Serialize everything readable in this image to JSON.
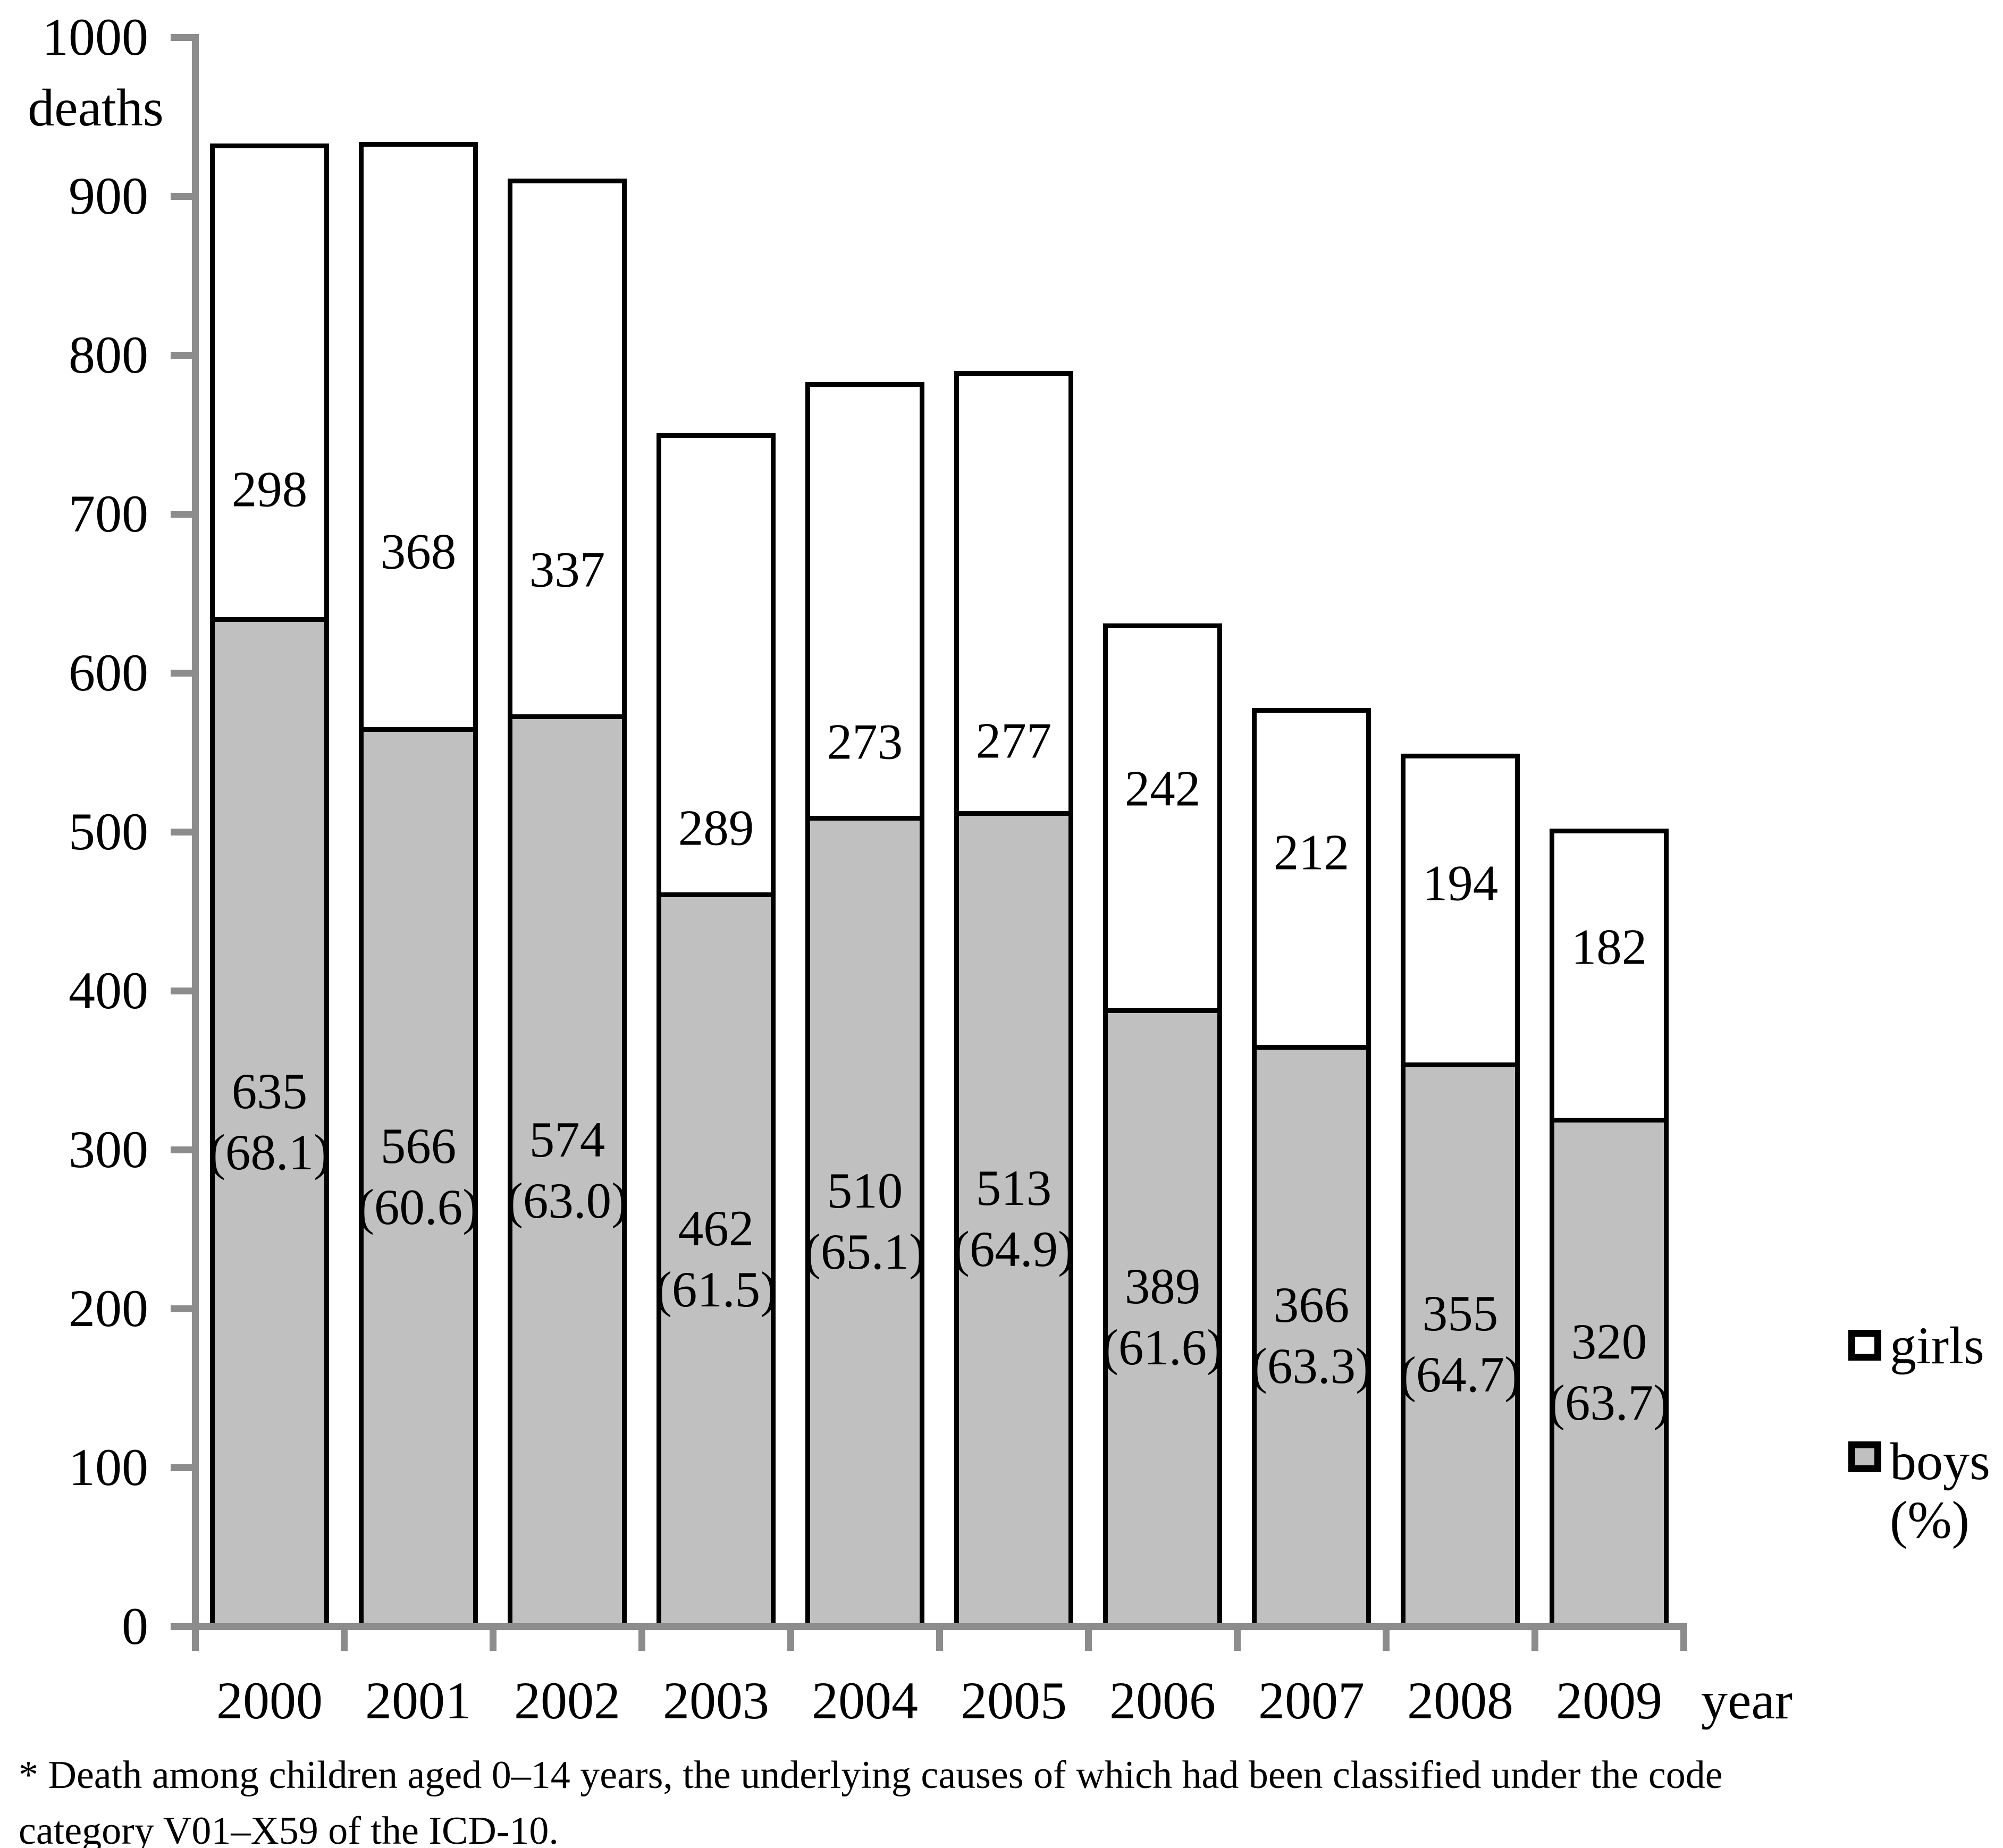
{
  "chart_data": {
    "type": "bar",
    "stacked": true,
    "orientation": "vertical",
    "categories": [
      "2000",
      "2001",
      "2002",
      "2003",
      "2004",
      "2005",
      "2006",
      "2007",
      "2008",
      "2009"
    ],
    "series": [
      {
        "name": "boys",
        "color": "#c0c0c0",
        "values": [
          635,
          566,
          574,
          462,
          510,
          513,
          389,
          366,
          355,
          320
        ],
        "pct_labels": [
          "(68.1)",
          "(60.6)",
          "(63.0)",
          "(61.5)",
          "(65.1)",
          "(64.9)",
          "(61.6)",
          "(63.3)",
          "(64.7)",
          "(63.7)"
        ]
      },
      {
        "name": "girls",
        "color": "#ffffff",
        "values": [
          298,
          368,
          337,
          289,
          273,
          277,
          242,
          212,
          194,
          182
        ]
      }
    ],
    "ylabel": "deaths",
    "xlabel": "year",
    "ylim": [
      0,
      1000
    ],
    "ytick_step": 100,
    "ytick_labels": [
      "0",
      "100",
      "200",
      "300",
      "400",
      "500",
      "600",
      "700",
      "800",
      "900",
      "1000"
    ],
    "grid": false,
    "legend_position": "right",
    "legend": {
      "girls_label": "girls",
      "boys_label": "boys",
      "boys_sublabel": "(%)"
    },
    "footnote": {
      "line1": "* Death among children aged 0–14 years, the underlying causes of which had been classified under the code",
      "line2": "category V01–X59 of the ICD-10."
    },
    "colors": {
      "boys_fill": "#c0c0c0",
      "girls_fill": "#ffffff",
      "bar_border": "#000000",
      "axis_line": "#8c8c8c",
      "text": "#000000"
    }
  }
}
